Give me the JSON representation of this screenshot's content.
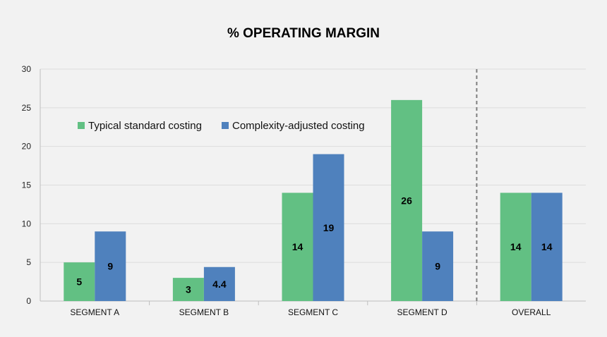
{
  "chart_data": {
    "type": "bar",
    "title": "% OPERATING MARGIN",
    "xlabel": "",
    "ylabel": "",
    "categories": [
      "SEGMENT A",
      "SEGMENT B",
      "SEGMENT C",
      "SEGMENT D",
      "OVERALL"
    ],
    "series": [
      {
        "name": "Typical standard costing",
        "color": "#62c083",
        "values": [
          5,
          3,
          14,
          26,
          14
        ]
      },
      {
        "name": "Complexity-adjusted costing",
        "color": "#4f81bd",
        "values": [
          9,
          4.4,
          19,
          9,
          14
        ]
      }
    ],
    "data_labels": [
      [
        "5",
        "3",
        "14",
        "26",
        "14"
      ],
      [
        "9",
        "4.4",
        "19",
        "9",
        "14"
      ]
    ],
    "ylim": [
      0,
      30
    ],
    "yticks": [
      0,
      5,
      10,
      15,
      20,
      25,
      30
    ],
    "grid": true,
    "legend_position": "top-left",
    "separator_before": "OVERALL"
  }
}
